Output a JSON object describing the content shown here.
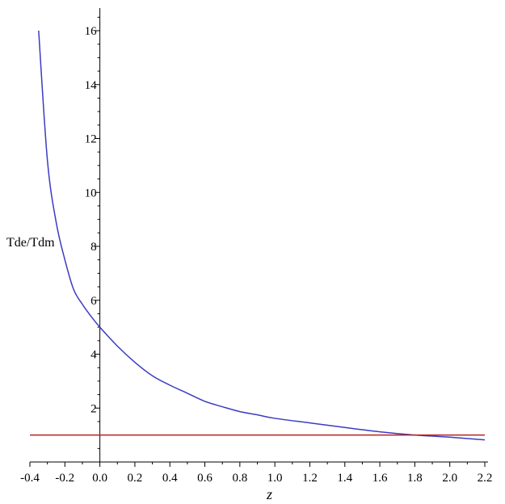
{
  "chart_data": {
    "type": "line",
    "xlabel": "z",
    "ylabel": "Tde/Tdm",
    "xlim": [
      -0.4,
      2.2
    ],
    "ylim": [
      0,
      16
    ],
    "x_ticks": [
      "-0.4",
      "-0.2",
      "0.0",
      "0.2",
      "0.4",
      "0.6",
      "0.8",
      "1.0",
      "1.2",
      "1.4",
      "1.6",
      "1.8",
      "2.0",
      "2.2"
    ],
    "y_ticks": [
      "2",
      "4",
      "6",
      "8",
      "10",
      "12",
      "14",
      "16"
    ],
    "grid": false,
    "series": [
      {
        "color": "#3b3bc4",
        "x": [
          -0.35,
          -0.3,
          -0.25,
          -0.2,
          -0.15,
          -0.1,
          -0.05,
          0.0,
          0.1,
          0.2,
          0.3,
          0.4,
          0.5,
          0.6,
          0.7,
          0.8,
          0.9,
          1.0,
          1.2,
          1.4,
          1.6,
          1.8,
          2.0,
          2.2
        ],
        "y": [
          16.0,
          11.2,
          8.9,
          7.5,
          6.4,
          5.85,
          5.4,
          5.0,
          4.3,
          3.7,
          3.2,
          2.85,
          2.55,
          2.25,
          2.05,
          1.87,
          1.75,
          1.62,
          1.45,
          1.28,
          1.12,
          1.0,
          0.92,
          0.82
        ]
      },
      {
        "color": "#b22222",
        "x": [
          -0.4,
          2.2
        ],
        "y": [
          1.0,
          1.0
        ]
      }
    ]
  }
}
